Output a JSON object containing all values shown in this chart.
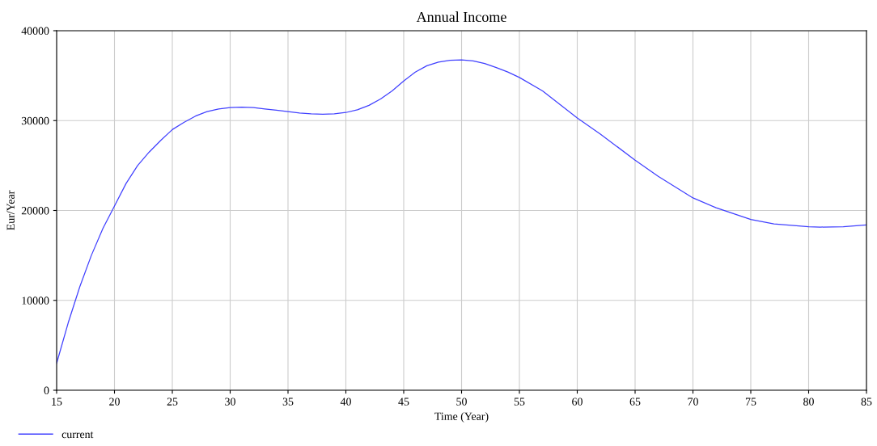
{
  "chart_data": {
    "type": "line",
    "title": "Annual Income",
    "xlabel": "Time (Year)",
    "ylabel": "Eur/Year",
    "x": [
      15,
      16,
      17,
      18,
      19,
      20,
      21,
      22,
      23,
      24,
      25,
      26,
      27,
      28,
      29,
      30,
      31,
      32,
      33,
      34,
      35,
      36,
      37,
      38,
      39,
      40,
      41,
      42,
      43,
      44,
      45,
      46,
      47,
      48,
      49,
      50,
      51,
      52,
      53,
      54,
      55,
      57,
      60,
      62,
      65,
      67,
      70,
      72,
      75,
      77,
      80,
      81,
      83,
      85
    ],
    "series": [
      {
        "name": "current",
        "color": "#4040ff",
        "values": [
          3000,
          7500,
          11500,
          15000,
          18000,
          20500,
          23000,
          25000,
          26500,
          27800,
          29000,
          29800,
          30500,
          31000,
          31300,
          31450,
          31500,
          31450,
          31300,
          31150,
          31000,
          30850,
          30750,
          30700,
          30750,
          30900,
          31200,
          31700,
          32400,
          33300,
          34400,
          35400,
          36100,
          36500,
          36700,
          36750,
          36650,
          36350,
          35900,
          35400,
          34800,
          33300,
          30300,
          28500,
          25600,
          23800,
          21400,
          20300,
          19000,
          18500,
          18200,
          18150,
          18200,
          18400
        ]
      }
    ],
    "xlim": [
      15,
      85
    ],
    "xticks": [
      15,
      20,
      25,
      30,
      35,
      40,
      45,
      50,
      55,
      60,
      65,
      70,
      75,
      80,
      85
    ],
    "ylim": [
      0,
      40000
    ],
    "yticks": [
      0,
      10000,
      20000,
      30000,
      40000
    ],
    "grid": true,
    "legend": "bottom left"
  }
}
